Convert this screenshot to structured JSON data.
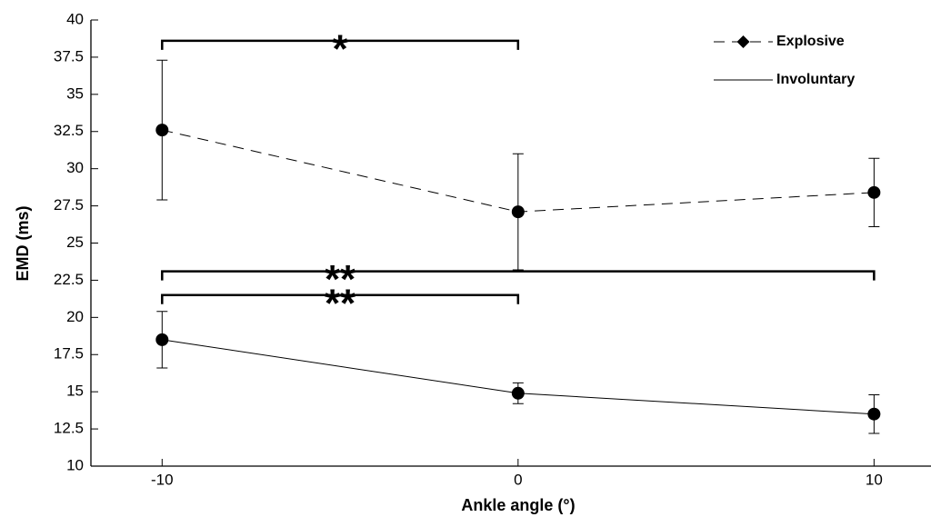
{
  "chart_data": {
    "type": "line",
    "x": [
      -10,
      0,
      10
    ],
    "xlabel": "Ankle angle (°)",
    "ylabel": "EMD (ms)",
    "xlim": [
      -12,
      11.6
    ],
    "ylim": [
      10,
      40
    ],
    "xticks": [
      -10,
      0,
      10
    ],
    "yticks": [
      10,
      12.5,
      15,
      17.5,
      20,
      22.5,
      25,
      27.5,
      30,
      32.5,
      35,
      37.5,
      40
    ],
    "grid": false,
    "legend": "upper right",
    "series": [
      {
        "name": "Explosive",
        "color": "#000000",
        "linestyle": "dashed",
        "values": [
          32.6,
          27.1,
          28.4
        ],
        "errors": [
          4.7,
          3.9,
          2.3
        ]
      },
      {
        "name": "Involuntary",
        "color": "#000000",
        "linestyle": "solid",
        "values": [
          18.5,
          14.9,
          13.5
        ],
        "errors": [
          1.9,
          0.7,
          1.3
        ]
      }
    ],
    "annotations": [
      {
        "text": "*",
        "x": [
          -10,
          0
        ],
        "y": 38.6
      },
      {
        "text": "**",
        "x": [
          -10,
          10
        ],
        "y": 23.1
      },
      {
        "text": "**",
        "x": [
          -10,
          0
        ],
        "y": 21.5
      }
    ]
  }
}
